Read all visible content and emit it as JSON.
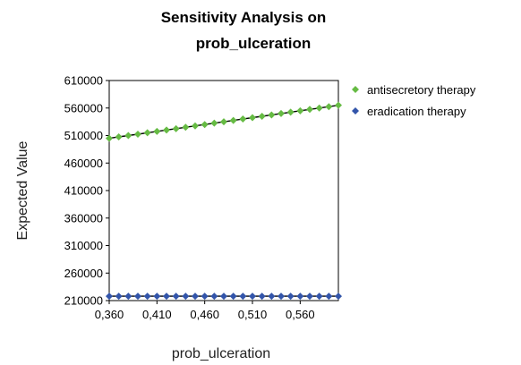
{
  "chart_data": {
    "type": "line",
    "title_lines": [
      "Sensitivity Analysis on",
      "prob_ulceration"
    ],
    "xlabel": "prob_ulceration",
    "ylabel": "Expected Value",
    "xlim": [
      0.36,
      0.6
    ],
    "ylim": [
      210000,
      610000
    ],
    "x_ticks": [
      "0,360",
      "0,410",
      "0,460",
      "0,510",
      "0,560"
    ],
    "y_ticks": [
      "610000",
      "560000",
      "510000",
      "460000",
      "410000",
      "360000",
      "310000",
      "260000",
      "210000"
    ],
    "legend_position": "right",
    "grid": false,
    "x": [
      0.36,
      0.37,
      0.38,
      0.39,
      0.4,
      0.41,
      0.42,
      0.43,
      0.44,
      0.45,
      0.46,
      0.47,
      0.48,
      0.49,
      0.5,
      0.51,
      0.52,
      0.53,
      0.54,
      0.55,
      0.56,
      0.57,
      0.58,
      0.59,
      0.6
    ],
    "series": [
      {
        "name": "antisecretory therapy",
        "color": "#66bb44",
        "marker": "diamond",
        "values": [
          505000,
          507500,
          510000,
          512500,
          515000,
          517500,
          520000,
          522500,
          525000,
          527500,
          530000,
          532500,
          535000,
          537500,
          540000,
          542500,
          545000,
          547500,
          550000,
          552500,
          555000,
          557500,
          560000,
          562500,
          565000
        ]
      },
      {
        "name": "eradication therapy",
        "color": "#3355aa",
        "marker": "diamond",
        "values": [
          218000,
          218000,
          218000,
          218000,
          218000,
          218000,
          218000,
          218000,
          218000,
          218000,
          218000,
          218000,
          218000,
          218000,
          218000,
          218000,
          218000,
          218000,
          218000,
          218000,
          218000,
          218000,
          218000,
          218000,
          218000
        ]
      }
    ]
  }
}
